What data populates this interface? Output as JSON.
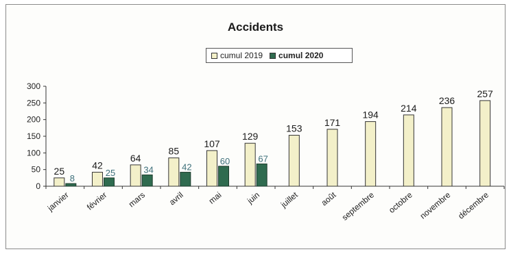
{
  "chart_data": {
    "type": "bar",
    "title": "Accidents",
    "categories": [
      "janvier",
      "février",
      "mars",
      "avril",
      "mai",
      "juin",
      "juillet",
      "août",
      "septembre",
      "octobre",
      "novembre",
      "décembre"
    ],
    "series": [
      {
        "name": "cumul 2019",
        "values": [
          25,
          42,
          64,
          85,
          107,
          129,
          153,
          171,
          194,
          214,
          236,
          257
        ],
        "color": "#f3f0c9"
      },
      {
        "name": "cumul 2020",
        "values": [
          8,
          25,
          34,
          42,
          60,
          67,
          null,
          null,
          null,
          null,
          null,
          null
        ],
        "color": "#2f6b4f"
      }
    ],
    "ylim": [
      0,
      300
    ],
    "yticks": [
      0,
      50,
      100,
      150,
      200,
      250,
      300
    ],
    "legend": "top-center",
    "grid": false,
    "xlabel": "",
    "ylabel": ""
  }
}
